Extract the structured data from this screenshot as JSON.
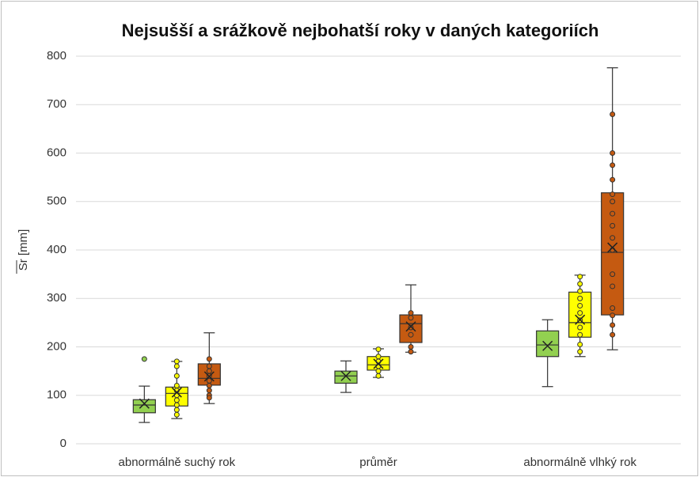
{
  "chart_data": {
    "type": "box",
    "title": "Nejsušší a srážkově nejbohatší roky v daných kategoriích",
    "y_label": "Sr [mm]",
    "categories": [
      "abnormálně suchý rok",
      "průměr",
      "abnormálně vlhký rok"
    ],
    "ylim": [
      0,
      800
    ],
    "yticks": [
      0,
      100,
      200,
      300,
      400,
      500,
      600,
      700,
      800
    ],
    "grid": true,
    "series": [
      {
        "color": "#92d050",
        "values": [
          {
            "min": 44,
            "q1": 64,
            "median": 80,
            "q3": 91,
            "max": 119,
            "mean": 83,
            "points": [
              175
            ]
          },
          {
            "min": 106,
            "q1": 125,
            "median": 140,
            "q3": 150,
            "max": 171,
            "mean": 140,
            "points": []
          },
          {
            "min": 118,
            "q1": 180,
            "median": 204,
            "q3": 233,
            "max": 256,
            "mean": 202,
            "points": []
          }
        ]
      },
      {
        "color": "#ffff00",
        "values": [
          {
            "min": 52,
            "q1": 78,
            "median": 104,
            "q3": 117,
            "max": 170,
            "mean": 106,
            "points": [
              170,
              160,
              140,
              120,
              110,
              100,
              90,
              80,
              70,
              60
            ]
          },
          {
            "min": 137,
            "q1": 152,
            "median": 163,
            "q3": 180,
            "max": 196,
            "mean": 165,
            "points": [
              195,
              180,
              170,
              160,
              150,
              140
            ]
          },
          {
            "min": 180,
            "q1": 220,
            "median": 250,
            "q3": 313,
            "max": 348,
            "mean": 256,
            "points": [
              345,
              330,
              315,
              300,
              285,
              270,
              255,
              240,
              225,
              205,
              190
            ]
          }
        ]
      },
      {
        "color": "#c55a11",
        "values": [
          {
            "min": 83,
            "q1": 121,
            "median": 135,
            "q3": 165,
            "max": 229,
            "mean": 139,
            "points": [
              175,
              160,
              150,
              140,
              130,
              120,
              110,
              100,
              95
            ]
          },
          {
            "min": 189,
            "q1": 209,
            "median": 248,
            "q3": 266,
            "max": 328,
            "mean": 242,
            "points": [
              270,
              260,
              240,
              225,
              200,
              190
            ]
          },
          {
            "min": 194,
            "q1": 266,
            "median": 395,
            "q3": 518,
            "max": 776,
            "mean": 405,
            "points": [
              680,
              600,
              575,
              545,
              515,
              500,
              475,
              450,
              425,
              400,
              350,
              325,
              280,
              265,
              245,
              225
            ]
          }
        ]
      }
    ]
  }
}
